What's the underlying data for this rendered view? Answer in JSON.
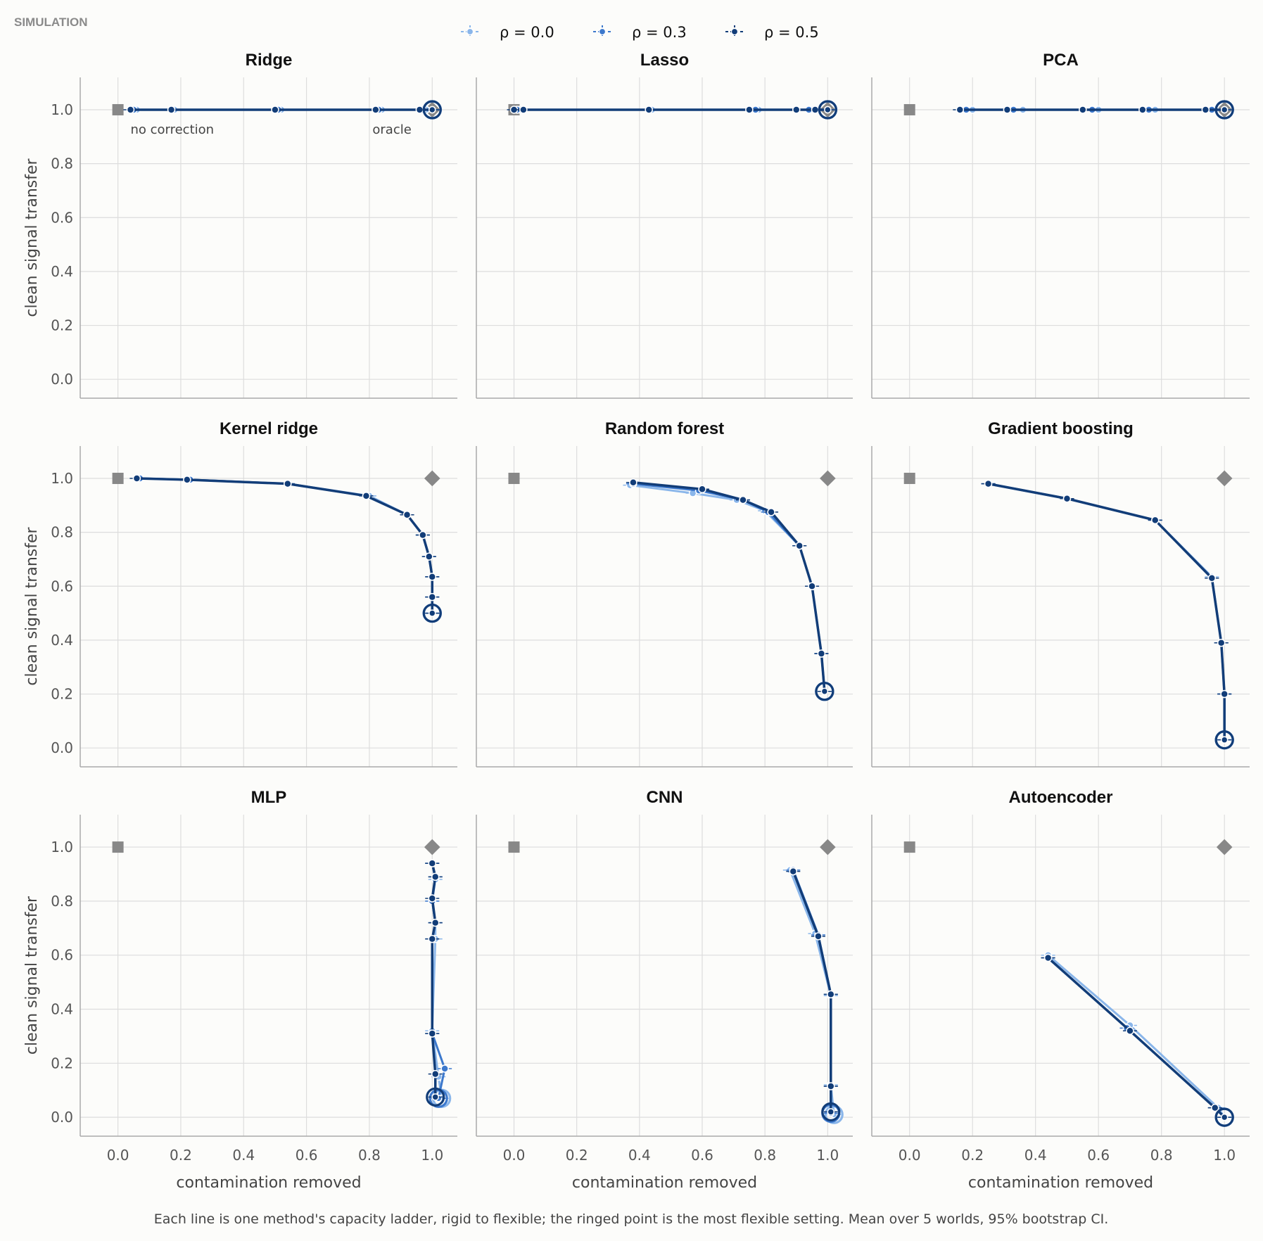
{
  "header": {
    "label": "SIMULATION"
  },
  "legend": {
    "items": [
      {
        "label": "ρ = 0.0",
        "color": "#8ab6ea"
      },
      {
        "label": "ρ = 0.3",
        "color": "#3c78cc"
      },
      {
        "label": "ρ = 0.5",
        "color": "#123d78"
      }
    ]
  },
  "axes": {
    "xlabel": "contamination removed",
    "ylabel": "clean signal transfer",
    "xticks": [
      "0.0",
      "0.2",
      "0.4",
      "0.6",
      "0.8",
      "1.0"
    ],
    "yticks": [
      "0.0",
      "0.2",
      "0.4",
      "0.6",
      "0.8",
      "1.0"
    ]
  },
  "annotations": {
    "no_correction": "no correction",
    "oracle": "oracle"
  },
  "caption": "Each line is one method's capacity ladder, rigid to flexible; the ringed point is the most flexible setting. Mean over 5 worlds, 95% bootstrap CI.",
  "markers": {
    "gray": "#888888"
  },
  "chart_data": [
    {
      "type": "line",
      "title": "Ridge",
      "xlabel": "",
      "ylabel": "clean signal transfer",
      "xlim": [
        -0.12,
        1.08
      ],
      "ylim": [
        -0.07,
        1.12
      ],
      "no_correction": [
        0.0,
        1.0
      ],
      "oracle": [
        1.0,
        1.0
      ],
      "series": [
        {
          "name": "ρ = 0.0",
          "x": [
            0.06,
            0.18,
            0.52,
            0.84,
            0.98,
            1.0
          ],
          "y": [
            1.0,
            1.0,
            1.0,
            1.0,
            1.0,
            1.0
          ]
        },
        {
          "name": "ρ = 0.3",
          "x": [
            0.05,
            0.17,
            0.51,
            0.83,
            0.97,
            1.0
          ],
          "y": [
            1.0,
            1.0,
            1.0,
            1.0,
            1.0,
            1.0
          ]
        },
        {
          "name": "ρ = 0.5",
          "x": [
            0.04,
            0.17,
            0.5,
            0.82,
            0.96,
            1.0
          ],
          "y": [
            1.0,
            1.0,
            1.0,
            1.0,
            1.0,
            1.0
          ]
        }
      ]
    },
    {
      "type": "line",
      "title": "Lasso",
      "xlabel": "",
      "ylabel": "",
      "xlim": [
        -0.12,
        1.08
      ],
      "ylim": [
        -0.07,
        1.12
      ],
      "no_correction": [
        0.0,
        1.0
      ],
      "oracle": [
        1.0,
        1.0
      ],
      "series": [
        {
          "name": "ρ = 0.0",
          "x": [
            0.02,
            0.44,
            0.78,
            0.95,
            1.0
          ],
          "y": [
            1.0,
            1.0,
            1.0,
            1.0,
            1.0
          ]
        },
        {
          "name": "ρ = 0.3",
          "x": [
            0.01,
            0.43,
            0.77,
            0.94,
            1.0
          ],
          "y": [
            1.0,
            1.0,
            1.0,
            1.0,
            1.0
          ]
        },
        {
          "name": "ρ = 0.5",
          "x": [
            0.0,
            0.03,
            0.43,
            0.75,
            0.9,
            0.96,
            1.0
          ],
          "y": [
            1.0,
            1.0,
            1.0,
            1.0,
            1.0,
            1.0,
            1.0
          ]
        }
      ]
    },
    {
      "type": "line",
      "title": "PCA",
      "xlabel": "",
      "ylabel": "",
      "xlim": [
        -0.12,
        1.08
      ],
      "ylim": [
        -0.07,
        1.12
      ],
      "no_correction": [
        0.0,
        1.0
      ],
      "oracle": [
        1.0,
        1.0
      ],
      "series": [
        {
          "name": "ρ = 0.0",
          "x": [
            0.2,
            0.36,
            0.6,
            0.78,
            0.97,
            1.0
          ],
          "y": [
            1.0,
            1.0,
            1.0,
            1.0,
            1.0,
            1.0
          ]
        },
        {
          "name": "ρ = 0.3",
          "x": [
            0.18,
            0.33,
            0.58,
            0.76,
            0.96,
            1.0
          ],
          "y": [
            1.0,
            1.0,
            1.0,
            1.0,
            1.0,
            1.0
          ]
        },
        {
          "name": "ρ = 0.5",
          "x": [
            0.16,
            0.31,
            0.55,
            0.74,
            0.94,
            1.0
          ],
          "y": [
            1.0,
            1.0,
            1.0,
            1.0,
            1.0,
            1.0
          ]
        }
      ]
    },
    {
      "type": "line",
      "title": "Kernel ridge",
      "xlabel": "",
      "ylabel": "clean signal transfer",
      "xlim": [
        -0.12,
        1.08
      ],
      "ylim": [
        -0.07,
        1.12
      ],
      "no_correction": [
        0.0,
        1.0
      ],
      "oracle": [
        1.0,
        1.0
      ],
      "series": [
        {
          "name": "ρ = 0.0",
          "x": [
            0.07,
            0.23,
            0.54,
            0.8,
            0.92,
            0.97,
            0.99,
            1.0,
            1.0,
            1.0
          ],
          "y": [
            1.0,
            0.995,
            0.98,
            0.935,
            0.865,
            0.79,
            0.71,
            0.635,
            0.56,
            0.5
          ]
        },
        {
          "name": "ρ = 0.3",
          "x": [
            0.07,
            0.23,
            0.54,
            0.79,
            0.92,
            0.97,
            0.99,
            1.0,
            1.0,
            1.0
          ],
          "y": [
            1.0,
            0.995,
            0.98,
            0.935,
            0.865,
            0.79,
            0.71,
            0.635,
            0.56,
            0.5
          ]
        },
        {
          "name": "ρ = 0.5",
          "x": [
            0.06,
            0.22,
            0.54,
            0.79,
            0.92,
            0.97,
            0.99,
            1.0,
            1.0,
            1.0
          ],
          "y": [
            1.0,
            0.995,
            0.98,
            0.935,
            0.865,
            0.79,
            0.71,
            0.635,
            0.56,
            0.5
          ]
        }
      ]
    },
    {
      "type": "line",
      "title": "Random forest",
      "xlabel": "",
      "ylabel": "",
      "xlim": [
        -0.12,
        1.08
      ],
      "ylim": [
        -0.07,
        1.12
      ],
      "no_correction": [
        0.0,
        1.0
      ],
      "oracle": [
        1.0,
        1.0
      ],
      "series": [
        {
          "name": "ρ = 0.0",
          "x": [
            0.37,
            0.57,
            0.71,
            0.8,
            0.91,
            0.95,
            0.98,
            0.99
          ],
          "y": [
            0.975,
            0.945,
            0.92,
            0.88,
            0.75,
            0.6,
            0.35,
            0.21
          ]
        },
        {
          "name": "ρ = 0.3",
          "x": [
            0.38,
            0.59,
            0.73,
            0.81,
            0.91,
            0.95,
            0.98,
            0.99
          ],
          "y": [
            0.98,
            0.955,
            0.92,
            0.875,
            0.75,
            0.6,
            0.35,
            0.21
          ]
        },
        {
          "name": "ρ = 0.5",
          "x": [
            0.38,
            0.6,
            0.73,
            0.82,
            0.91,
            0.95,
            0.98,
            0.99
          ],
          "y": [
            0.985,
            0.96,
            0.92,
            0.875,
            0.75,
            0.6,
            0.35,
            0.21
          ]
        }
      ]
    },
    {
      "type": "line",
      "title": "Gradient boosting",
      "xlabel": "",
      "ylabel": "",
      "xlim": [
        -0.12,
        1.08
      ],
      "ylim": [
        -0.07,
        1.12
      ],
      "no_correction": [
        0.0,
        1.0
      ],
      "oracle": [
        1.0,
        1.0
      ],
      "series": [
        {
          "name": "ρ = 0.0",
          "x": [
            0.25,
            0.5,
            0.78,
            0.96,
            0.99,
            1.0,
            1.0
          ],
          "y": [
            0.98,
            0.925,
            0.845,
            0.635,
            0.39,
            0.2,
            0.03
          ]
        },
        {
          "name": "ρ = 0.3",
          "x": [
            0.25,
            0.5,
            0.78,
            0.96,
            0.99,
            1.0,
            1.0
          ],
          "y": [
            0.98,
            0.925,
            0.845,
            0.63,
            0.39,
            0.2,
            0.03
          ]
        },
        {
          "name": "ρ = 0.5",
          "x": [
            0.25,
            0.5,
            0.78,
            0.96,
            0.99,
            1.0,
            1.0
          ],
          "y": [
            0.98,
            0.925,
            0.845,
            0.63,
            0.39,
            0.2,
            0.03
          ]
        }
      ]
    },
    {
      "type": "line",
      "title": "MLP",
      "xlabel": "contamination removed",
      "ylabel": "clean signal transfer",
      "xlim": [
        -0.12,
        1.08
      ],
      "ylim": [
        -0.07,
        1.12
      ],
      "no_correction": [
        0.0,
        1.0
      ],
      "oracle": [
        1.0,
        1.0
      ],
      "series": [
        {
          "name": "ρ = 0.0",
          "x": [
            1.0,
            1.01,
            1.0,
            1.01,
            1.01,
            1.0,
            1.02,
            1.03
          ],
          "y": [
            0.94,
            0.88,
            0.8,
            0.72,
            0.66,
            0.32,
            0.15,
            0.07
          ]
        },
        {
          "name": "ρ = 0.3",
          "x": [
            1.0,
            1.01,
            1.0,
            1.01,
            1.0,
            1.0,
            1.04,
            1.02
          ],
          "y": [
            0.94,
            0.89,
            0.8,
            0.72,
            0.66,
            0.31,
            0.18,
            0.07
          ]
        },
        {
          "name": "ρ = 0.5",
          "x": [
            1.0,
            1.01,
            1.0,
            1.01,
            1.0,
            1.0,
            1.01,
            1.01
          ],
          "y": [
            0.94,
            0.89,
            0.81,
            0.72,
            0.66,
            0.31,
            0.16,
            0.075
          ]
        }
      ]
    },
    {
      "type": "line",
      "title": "CNN",
      "xlabel": "contamination removed",
      "ylabel": "",
      "xlim": [
        -0.12,
        1.08
      ],
      "ylim": [
        -0.07,
        1.12
      ],
      "no_correction": [
        0.0,
        1.0
      ],
      "oracle": [
        1.0,
        1.0
      ],
      "series": [
        {
          "name": "ρ = 0.0",
          "x": [
            0.88,
            0.96,
            1.01,
            1.01,
            1.02
          ],
          "y": [
            0.915,
            0.68,
            0.45,
            0.12,
            0.01
          ]
        },
        {
          "name": "ρ = 0.3",
          "x": [
            0.89,
            0.97,
            1.01,
            1.01,
            1.01
          ],
          "y": [
            0.915,
            0.675,
            0.455,
            0.115,
            0.015
          ]
        },
        {
          "name": "ρ = 0.5",
          "x": [
            0.89,
            0.97,
            1.01,
            1.01,
            1.01
          ],
          "y": [
            0.91,
            0.67,
            0.455,
            0.115,
            0.02
          ]
        }
      ]
    },
    {
      "type": "line",
      "title": "Autoencoder",
      "xlabel": "contamination removed",
      "ylabel": "",
      "xlim": [
        -0.12,
        1.08
      ],
      "ylim": [
        -0.07,
        1.12
      ],
      "no_correction": [
        0.0,
        1.0
      ],
      "oracle": [
        1.0,
        1.0
      ],
      "series": [
        {
          "name": "ρ = 0.0",
          "x": [
            0.44,
            0.7,
            0.98,
            1.0
          ],
          "y": [
            0.6,
            0.34,
            0.035,
            0.0
          ]
        },
        {
          "name": "ρ = 0.3",
          "x": [
            0.44,
            0.69,
            0.97,
            1.0
          ],
          "y": [
            0.59,
            0.33,
            0.035,
            0.0
          ]
        },
        {
          "name": "ρ = 0.5",
          "x": [
            0.44,
            0.7,
            0.97,
            1.0
          ],
          "y": [
            0.59,
            0.32,
            0.035,
            0.0
          ]
        }
      ]
    }
  ]
}
